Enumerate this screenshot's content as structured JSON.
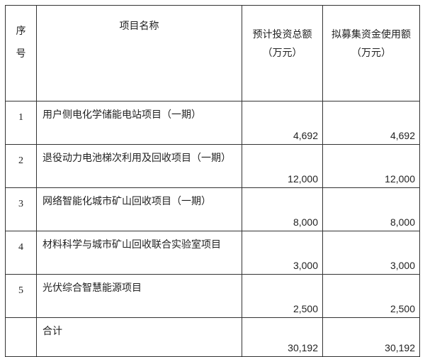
{
  "headers": {
    "seq": [
      "序",
      "号"
    ],
    "name": "项目名称",
    "total_investment": [
      "预计投资总额",
      "（万元）"
    ],
    "raised_funds": [
      "拟募集资金使用额",
      "（万元）"
    ]
  },
  "rows": [
    {
      "seq": "1",
      "name": "用户侧电化学储能电站项目（一期）",
      "total": "4,692",
      "raised": "4,692"
    },
    {
      "seq": "2",
      "name": "退役动力电池梯次利用及回收项目（一期）",
      "total": "12,000",
      "raised": "12,000"
    },
    {
      "seq": "3",
      "name": "网络智能化城市矿山回收项目（一期）",
      "total": "8,000",
      "raised": "8,000"
    },
    {
      "seq": "4",
      "name": "材料科学与城市矿山回收联合实验室项目",
      "total": "3,000",
      "raised": "3,000"
    },
    {
      "seq": "5",
      "name": "光伏综合智慧能源项目",
      "total": "2,500",
      "raised": "2,500"
    }
  ],
  "total_row": {
    "label": "合计",
    "total": "30,192",
    "raised": "30,192"
  }
}
